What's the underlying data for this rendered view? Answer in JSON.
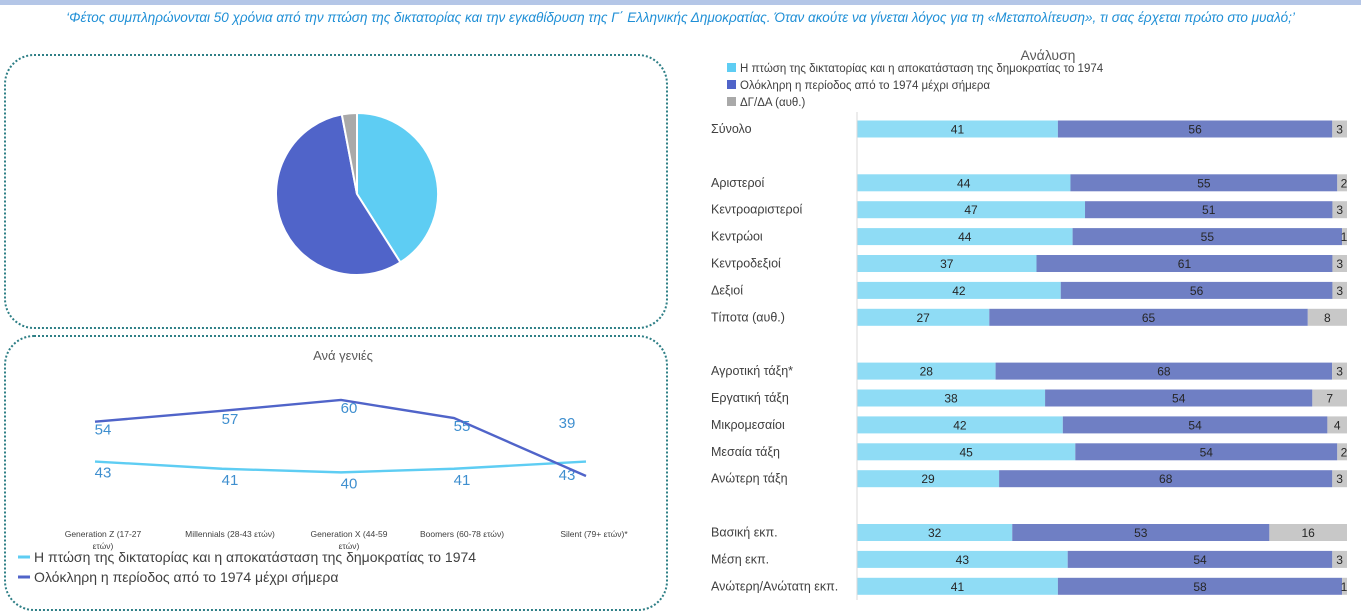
{
  "question": "‘Φέτος συμπληρώνονται 50 χρόνια από την πτώση της δικτατορίας και την εγκαθίδρυση της Γ΄ Ελληνικής Δημοκρατίας. Όταν ακούτε να γίνεται λόγος για τη «Μεταπολίτευση», τι σας έρχεται πρώτο στο μυαλό;’",
  "colors": {
    "fall": "#66d1f5",
    "whole": "#5264c7",
    "na": "#a6a6a6",
    "bar_fall": "#8fdcf5",
    "bar_whole": "#6f7fc4",
    "bar_na": "#c8c8c8",
    "panel_border": "#2e7f86",
    "question": "#1f8fd6"
  },
  "chart_data": [
    {
      "type": "pie",
      "title": "",
      "slices": [
        {
          "label": "Η πτώση της δικτατορίας και η αποκατάσταση της δημοκρατίας το 1974",
          "value": 41,
          "color": "#5ecdf3"
        },
        {
          "label": "Ολόκληρη η περίοδος από το 1974 μέχρι σήμερα",
          "value": 56,
          "color": "#5064c9"
        },
        {
          "label": "ΔΓ/ΔΑ (αυθ.)",
          "value": 3,
          "color": "#a9a9a9"
        }
      ]
    },
    {
      "type": "line",
      "title": "Ανά γενιές",
      "categories": [
        "Generation Z (17-27 ετών)",
        "Millennials (28-43 ετών)",
        "Generation X (44-59 ετών)",
        "Boomers (60-78 ετών)",
        "Silent (79+ ετών)*"
      ],
      "series": [
        {
          "name": "Η πτώση της δικτατορίας και η αποκατάσταση της δημοκρατίας το 1974",
          "values": [
            43,
            41,
            40,
            41,
            43
          ],
          "color": "#5ecdf3"
        },
        {
          "name": "Ολόκληρη η περίοδος από το 1974 μέχρι σήμερα",
          "values": [
            54,
            57,
            60,
            55,
            39
          ],
          "color": "#5064c9"
        }
      ]
    },
    {
      "type": "bar",
      "orientation": "horizontal",
      "stacked": true,
      "title": "Ανάλυση",
      "legend": [
        "Η πτώση της δικτατορίας και η αποκατάσταση της δημοκρατίας το 1974",
        "Ολόκληρη η περίοδος από το 1974 μέχρι σήμερα",
        "ΔΓ/ΔΑ (αυθ.)"
      ],
      "rows": [
        {
          "label": "Σύνολο",
          "values": [
            41,
            56,
            3
          ]
        },
        {
          "gap": true
        },
        {
          "label": "Αριστεροί",
          "values": [
            44,
            55,
            2
          ]
        },
        {
          "label": "Κεντροαριστεροί",
          "values": [
            47,
            51,
            3
          ]
        },
        {
          "label": "Κεντρώοι",
          "values": [
            44,
            55,
            1
          ]
        },
        {
          "label": "Κεντροδεξιοί",
          "values": [
            37,
            61,
            3
          ]
        },
        {
          "label": "Δεξιοί",
          "values": [
            42,
            56,
            3
          ]
        },
        {
          "label": "Τίποτα (αυθ.)",
          "values": [
            27,
            65,
            8
          ]
        },
        {
          "gap": true
        },
        {
          "label": "Αγροτική τάξη*",
          "values": [
            28,
            68,
            3
          ]
        },
        {
          "label": "Εργατική τάξη",
          "values": [
            38,
            54,
            7
          ]
        },
        {
          "label": "Μικρομεσαίοι",
          "values": [
            42,
            54,
            4
          ]
        },
        {
          "label": "Μεσαία τάξη",
          "values": [
            45,
            54,
            2
          ]
        },
        {
          "label": "Ανώτερη τάξη",
          "values": [
            29,
            68,
            3
          ]
        },
        {
          "gap": true
        },
        {
          "label": "Βασική εκπ.",
          "values": [
            32,
            53,
            16
          ]
        },
        {
          "label": "Μέση εκπ.",
          "values": [
            43,
            54,
            3
          ]
        },
        {
          "label": "Ανώτερη/Ανώτατη εκπ.",
          "values": [
            41,
            58,
            1
          ]
        }
      ]
    }
  ]
}
